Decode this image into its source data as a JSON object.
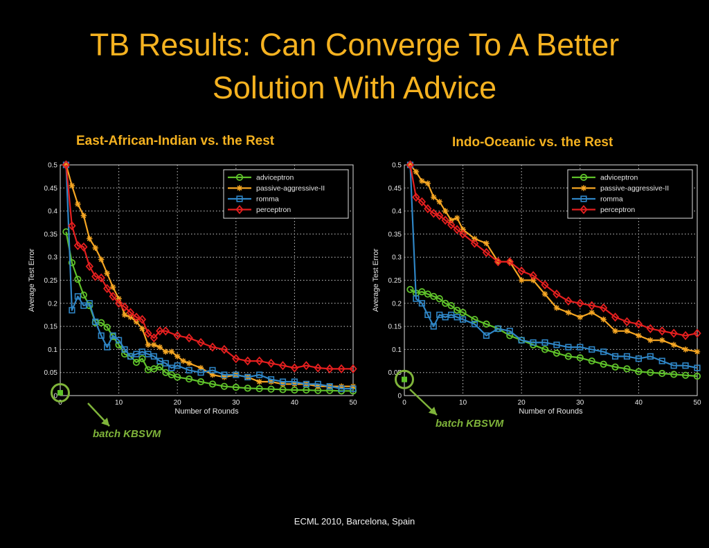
{
  "slide": {
    "title_line1": "TB Results: Can Converge To A Better",
    "title_line2": "Solution With Advice",
    "footer": "ECML 2010, Barcelona, Spain"
  },
  "colors": {
    "title": "#f5b220",
    "adviceptron": "#5fc22a",
    "passive-aggressive-II": "#f5a623",
    "romma": "#2f86c6",
    "perceptron": "#e51f1f",
    "annotation": "#7fb43a"
  },
  "chart_data": [
    {
      "type": "line",
      "title": "East-African-Indian vs. the Rest",
      "xlabel": "Number of Rounds",
      "ylabel": "Average Test Error",
      "xlim": [
        0,
        50
      ],
      "ylim": [
        0,
        0.5
      ],
      "xticks": [
        "0",
        "10",
        "20",
        "30",
        "40",
        "50"
      ],
      "yticks": [
        "0",
        "0.05",
        "0.1",
        "0.15",
        "0.2",
        "0.25",
        "0.3",
        "0.35",
        "0.4",
        "0.45",
        "0.5"
      ],
      "grid": true,
      "legend_position": "top-right",
      "annotation": "batch KBSVM",
      "batch_point": [
        0,
        0.006
      ],
      "series": [
        {
          "name": "adviceptron",
          "marker": "circle",
          "x": [
            1,
            2,
            3,
            4,
            5,
            6,
            7,
            8,
            9,
            10,
            11,
            12,
            13,
            14,
            15,
            16,
            17,
            18,
            19,
            20,
            22,
            24,
            26,
            28,
            30,
            32,
            34,
            36,
            38,
            40,
            42,
            44,
            46,
            48,
            50
          ],
          "y": [
            0.355,
            0.288,
            0.252,
            0.218,
            0.195,
            0.158,
            0.158,
            0.148,
            0.128,
            0.11,
            0.09,
            0.085,
            0.072,
            0.08,
            0.056,
            0.058,
            0.062,
            0.05,
            0.045,
            0.04,
            0.036,
            0.03,
            0.025,
            0.02,
            0.018,
            0.016,
            0.015,
            0.014,
            0.013,
            0.012,
            0.012,
            0.011,
            0.011,
            0.01,
            0.01
          ]
        },
        {
          "name": "passive-aggressive-II",
          "marker": "star",
          "x": [
            1,
            2,
            3,
            4,
            5,
            6,
            7,
            8,
            9,
            10,
            11,
            12,
            13,
            14,
            15,
            16,
            17,
            18,
            19,
            20,
            21,
            22,
            24,
            26,
            28,
            30,
            32,
            34,
            36,
            38,
            40,
            42,
            44,
            46,
            48,
            50
          ],
          "y": [
            0.5,
            0.455,
            0.415,
            0.39,
            0.34,
            0.32,
            0.295,
            0.265,
            0.235,
            0.21,
            0.175,
            0.17,
            0.16,
            0.145,
            0.11,
            0.11,
            0.105,
            0.095,
            0.095,
            0.085,
            0.075,
            0.07,
            0.06,
            0.045,
            0.04,
            0.045,
            0.04,
            0.03,
            0.03,
            0.025,
            0.025,
            0.025,
            0.02,
            0.02,
            0.02,
            0.02
          ]
        },
        {
          "name": "romma",
          "marker": "square",
          "x": [
            1,
            2,
            3,
            4,
            5,
            6,
            7,
            8,
            9,
            10,
            11,
            12,
            13,
            14,
            15,
            16,
            17,
            18,
            19,
            20,
            22,
            24,
            26,
            28,
            30,
            32,
            34,
            36,
            38,
            40,
            42,
            44,
            46,
            48,
            50
          ],
          "y": [
            0.5,
            0.185,
            0.215,
            0.195,
            0.2,
            0.16,
            0.13,
            0.105,
            0.13,
            0.12,
            0.1,
            0.085,
            0.09,
            0.095,
            0.09,
            0.085,
            0.075,
            0.07,
            0.06,
            0.065,
            0.055,
            0.05,
            0.055,
            0.045,
            0.045,
            0.04,
            0.045,
            0.035,
            0.03,
            0.03,
            0.025,
            0.025,
            0.02,
            0.015,
            0.015
          ]
        },
        {
          "name": "perceptron",
          "marker": "diamond",
          "x": [
            1,
            2,
            3,
            4,
            5,
            6,
            7,
            8,
            9,
            10,
            11,
            12,
            13,
            14,
            15,
            16,
            17,
            18,
            20,
            22,
            24,
            26,
            28,
            30,
            32,
            34,
            36,
            38,
            40,
            42,
            44,
            46,
            48,
            50
          ],
          "y": [
            0.5,
            0.368,
            0.325,
            0.322,
            0.28,
            0.258,
            0.255,
            0.232,
            0.215,
            0.2,
            0.192,
            0.18,
            0.17,
            0.165,
            0.135,
            0.125,
            0.14,
            0.14,
            0.13,
            0.125,
            0.115,
            0.105,
            0.1,
            0.08,
            0.075,
            0.075,
            0.07,
            0.065,
            0.06,
            0.065,
            0.06,
            0.058,
            0.058,
            0.058
          ]
        }
      ]
    },
    {
      "type": "line",
      "title": "Indo-Oceanic vs. the Rest",
      "xlabel": "Number of Rounds",
      "ylabel": "Average Test Error",
      "xlim": [
        0,
        50
      ],
      "ylim": [
        0,
        0.5
      ],
      "xticks": [
        "0",
        "10",
        "20",
        "30",
        "40",
        "50"
      ],
      "yticks": [
        "0",
        "0.05",
        "0.1",
        "0.15",
        "0.2",
        "0.25",
        "0.3",
        "0.35",
        "0.4",
        "0.45",
        "0.5"
      ],
      "grid": true,
      "legend_position": "top-right",
      "annotation": "batch KBSVM",
      "batch_point": [
        0,
        0.035
      ],
      "series": [
        {
          "name": "adviceptron",
          "marker": "circle",
          "x": [
            1,
            2,
            3,
            4,
            5,
            6,
            7,
            8,
            9,
            10,
            12,
            14,
            16,
            18,
            20,
            22,
            24,
            26,
            28,
            30,
            32,
            34,
            36,
            38,
            40,
            42,
            44,
            46,
            48,
            50
          ],
          "y": [
            0.23,
            0.222,
            0.225,
            0.22,
            0.215,
            0.21,
            0.2,
            0.195,
            0.185,
            0.18,
            0.165,
            0.155,
            0.145,
            0.13,
            0.12,
            0.11,
            0.1,
            0.092,
            0.085,
            0.082,
            0.075,
            0.068,
            0.062,
            0.058,
            0.052,
            0.05,
            0.048,
            0.046,
            0.044,
            0.042
          ]
        },
        {
          "name": "passive-aggressive-II",
          "marker": "star",
          "x": [
            1,
            2,
            3,
            4,
            5,
            6,
            7,
            8,
            9,
            10,
            12,
            14,
            16,
            18,
            20,
            22,
            24,
            26,
            28,
            30,
            32,
            34,
            36,
            38,
            40,
            42,
            44,
            46,
            48,
            50
          ],
          "y": [
            0.5,
            0.485,
            0.465,
            0.46,
            0.43,
            0.42,
            0.4,
            0.38,
            0.385,
            0.36,
            0.34,
            0.33,
            0.29,
            0.29,
            0.25,
            0.25,
            0.22,
            0.19,
            0.18,
            0.17,
            0.18,
            0.165,
            0.14,
            0.14,
            0.13,
            0.12,
            0.12,
            0.11,
            0.1,
            0.095
          ]
        },
        {
          "name": "romma",
          "marker": "square",
          "x": [
            1,
            2,
            3,
            4,
            5,
            6,
            7,
            8,
            9,
            10,
            12,
            14,
            16,
            18,
            20,
            22,
            24,
            26,
            28,
            30,
            32,
            34,
            36,
            38,
            40,
            42,
            44,
            46,
            48,
            50
          ],
          "y": [
            0.5,
            0.21,
            0.2,
            0.175,
            0.15,
            0.175,
            0.17,
            0.175,
            0.17,
            0.165,
            0.155,
            0.13,
            0.145,
            0.14,
            0.12,
            0.115,
            0.115,
            0.11,
            0.105,
            0.105,
            0.1,
            0.095,
            0.085,
            0.085,
            0.08,
            0.085,
            0.075,
            0.065,
            0.065,
            0.06
          ]
        },
        {
          "name": "perceptron",
          "marker": "diamond",
          "x": [
            1,
            2,
            3,
            4,
            5,
            6,
            7,
            8,
            9,
            10,
            12,
            14,
            16,
            18,
            20,
            22,
            24,
            26,
            28,
            30,
            32,
            34,
            36,
            38,
            40,
            42,
            44,
            46,
            48,
            50
          ],
          "y": [
            0.5,
            0.43,
            0.42,
            0.405,
            0.395,
            0.39,
            0.38,
            0.37,
            0.36,
            0.35,
            0.33,
            0.31,
            0.29,
            0.29,
            0.27,
            0.26,
            0.24,
            0.22,
            0.205,
            0.2,
            0.195,
            0.19,
            0.17,
            0.16,
            0.155,
            0.145,
            0.14,
            0.135,
            0.13,
            0.135
          ]
        }
      ]
    }
  ]
}
